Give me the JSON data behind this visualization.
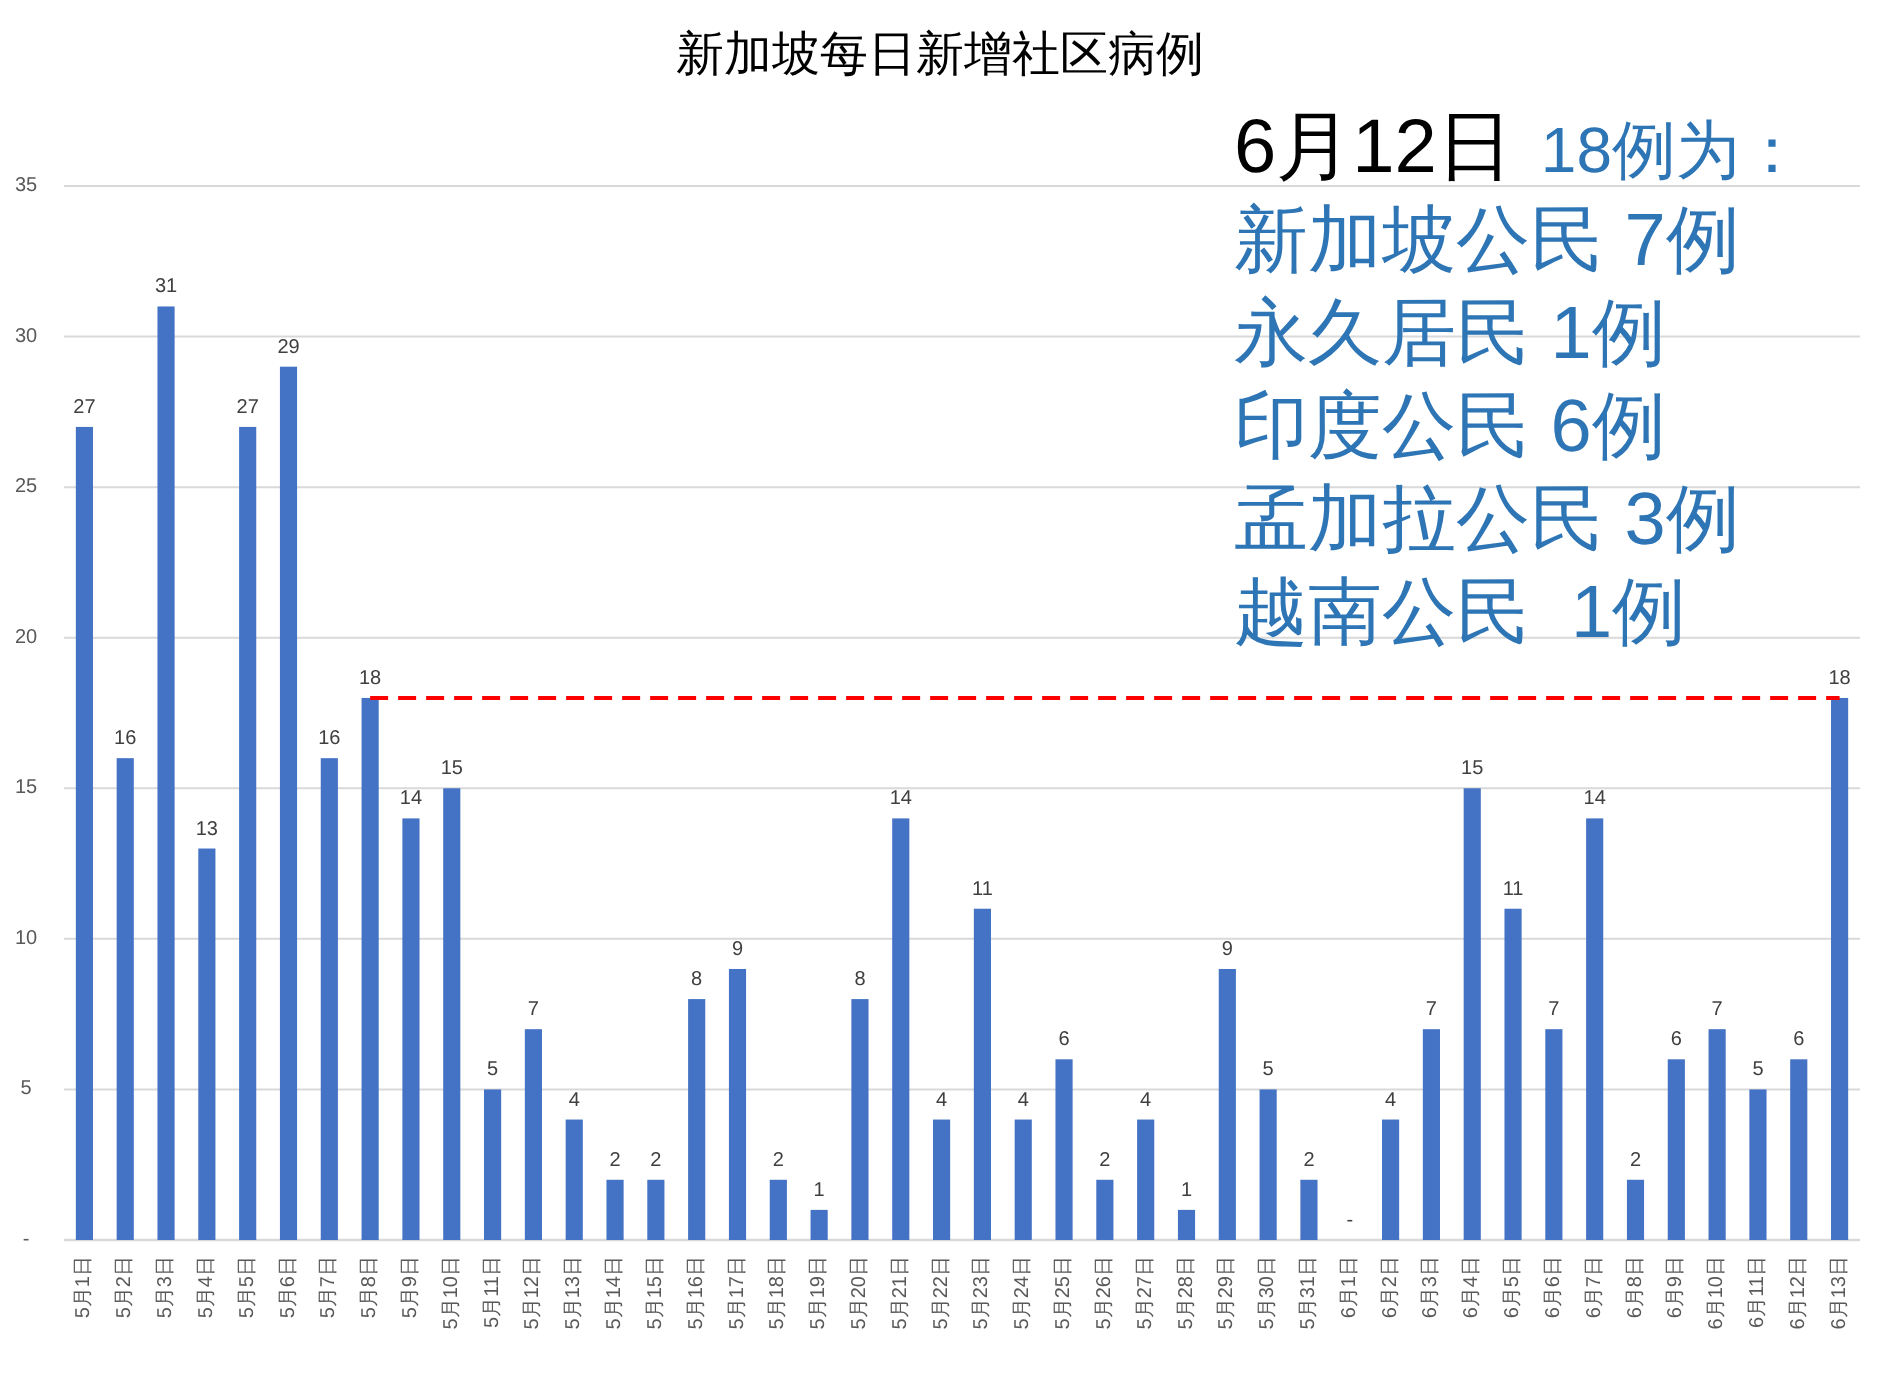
{
  "chart_data": {
    "type": "bar",
    "title": "新加坡每日新增社区病例",
    "categories": [
      "5月1日",
      "5月2日",
      "5月3日",
      "5月4日",
      "5月5日",
      "5月6日",
      "5月7日",
      "5月8日",
      "5月9日",
      "5月10日",
      "5月11日",
      "5月12日",
      "5月13日",
      "5月14日",
      "5月15日",
      "5月16日",
      "5月17日",
      "5月18日",
      "5月19日",
      "5月20日",
      "5月21日",
      "5月22日",
      "5月23日",
      "5月24日",
      "5月25日",
      "5月26日",
      "5月27日",
      "5月28日",
      "5月29日",
      "5月30日",
      "5月31日",
      "6月1日",
      "6月2日",
      "6月3日",
      "6月4日",
      "6月5日",
      "6月6日",
      "6月7日",
      "6月8日",
      "6月9日",
      "6月10日",
      "6月11日",
      "6月12日",
      "6月13日"
    ],
    "series": [
      {
        "color": "#4472c4",
        "values": [
          27,
          16,
          31,
          13,
          27,
          29,
          16,
          18,
          14,
          15,
          5,
          7,
          4,
          2,
          2,
          8,
          9,
          2,
          1,
          8,
          14,
          4,
          11,
          4,
          6,
          2,
          4,
          1,
          9,
          5,
          2,
          0,
          4,
          7,
          15,
          11,
          7,
          14,
          2,
          6,
          7,
          5,
          6,
          18
        ],
        "value_labels": [
          "27",
          "16",
          "31",
          "13",
          "27",
          "29",
          "16",
          "18",
          "14",
          "15",
          "5",
          "7",
          "4",
          "2",
          "2",
          "8",
          "9",
          "2",
          "1",
          "8",
          "14",
          "4",
          "11",
          "4",
          "6",
          "2",
          "4",
          "1",
          "9",
          "5",
          "2",
          "-",
          "4",
          "7",
          "15",
          "11",
          "7",
          "14",
          "2",
          "6",
          "7",
          "5",
          "6",
          "18"
        ]
      },
      {
        "type": "line",
        "color": "#ff0000",
        "line_style": "dashed",
        "marker": "none",
        "values": [
          null,
          null,
          null,
          null,
          null,
          null,
          null,
          18,
          18,
          18,
          18,
          18,
          18,
          18,
          18,
          18,
          18,
          18,
          18,
          18,
          18,
          18,
          18,
          18,
          18,
          18,
          18,
          18,
          18,
          18,
          18,
          18,
          18,
          18,
          18,
          18,
          18,
          18,
          18,
          18,
          18,
          18,
          18,
          18
        ]
      }
    ],
    "ylim": [
      0,
      35
    ],
    "yticks": [
      {
        "value": 0,
        "label": "-"
      },
      5,
      10,
      15,
      20,
      25,
      30,
      35
    ],
    "grid": "y",
    "annotations": [
      "6月12日",
      "18例为：",
      "新加坡公民 7例",
      "永久居民 1例",
      "印度公民 6例",
      "孟加拉公民 3例",
      "越南公民  1例"
    ]
  }
}
